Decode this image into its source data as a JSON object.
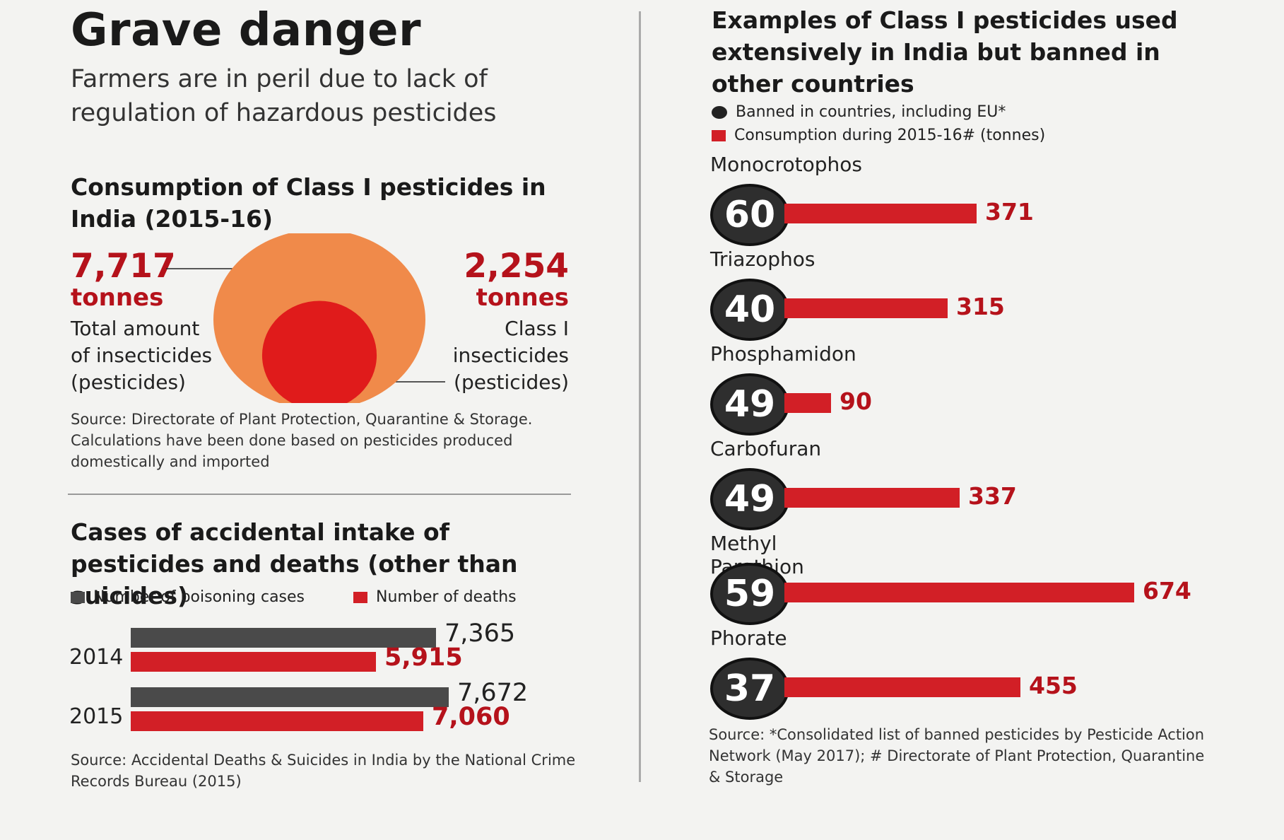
{
  "title": "Grave danger",
  "subtitle": "Farmers are in peril due to lack of regulation of hazardous pesticides",
  "consumption": {
    "heading": "Consumption of Class I pesticides in India (2015-16)",
    "total": {
      "value": "7,717",
      "unit": "tonnes",
      "label": "Total amount of insecticides (pesticides)"
    },
    "class1": {
      "value": "2,254",
      "unit": "tonnes",
      "label": "Class I insecticides (pesticides)"
    },
    "source": "Source: Directorate of Plant Protection, Quarantine & Storage. Calculations have been done based on pesticides produced domestically and imported",
    "colors": {
      "outer": "#f08a4a",
      "inner": "#e01b1b"
    }
  },
  "accidents": {
    "heading": "Cases of accidental intake of pesticides and deaths (other than suicides)",
    "legend": [
      "Number of poisoning cases",
      "Number of deaths"
    ],
    "source": "Source: Accidental Deaths & Suicides in India by the National Crime Records Bureau (2015)"
  },
  "banned": {
    "heading": "Examples of Class I pesticides used extensively in India but banned in other countries",
    "legend": [
      "Banned in countries, including EU*",
      "Consumption during 2015-16# (tonnes)"
    ],
    "source": "Source: *Consolidated list of banned pesticides by Pesticide Action Network (May 2017); # Directorate of Plant Protection, Quarantine & Storage"
  },
  "chart_data": [
    {
      "type": "pie",
      "title": "Consumption of Class I pesticides in India (2015-16)",
      "series": [
        {
          "name": "Total amount of insecticides (pesticides)",
          "values": [
            7717
          ]
        },
        {
          "name": "Class I insecticides (pesticides)",
          "values": [
            2254
          ]
        }
      ]
    },
    {
      "type": "bar",
      "title": "Cases of accidental intake of pesticides and deaths (other than suicides)",
      "categories": [
        "2014",
        "2015"
      ],
      "series": [
        {
          "name": "Number of poisoning cases",
          "values": [
            7365,
            7672
          ],
          "labels": [
            "7,365",
            "7,672"
          ],
          "color": "#4a4a4a"
        },
        {
          "name": "Number of deaths",
          "values": [
            5915,
            7060
          ],
          "labels": [
            "5,915",
            "7,060"
          ],
          "color": "#d21f26"
        }
      ],
      "xlim": [
        0,
        10000
      ]
    },
    {
      "type": "bar",
      "title": "Examples of Class I pesticides used extensively in India but banned in other countries",
      "categories": [
        "Monocrotophos",
        "Triazophos",
        "Phosphamidon",
        "Carbofuran",
        "Methyl Parathion",
        "Phorate"
      ],
      "series": [
        {
          "name": "Banned in countries, including EU*",
          "values": [
            60,
            40,
            49,
            49,
            59,
            37
          ],
          "color": "#2e2e2e"
        },
        {
          "name": "Consumption during 2015-16# (tonnes)",
          "values": [
            371,
            315,
            90,
            337,
            674,
            455
          ],
          "color": "#d21f26"
        }
      ],
      "xlim": [
        0,
        700
      ]
    }
  ]
}
